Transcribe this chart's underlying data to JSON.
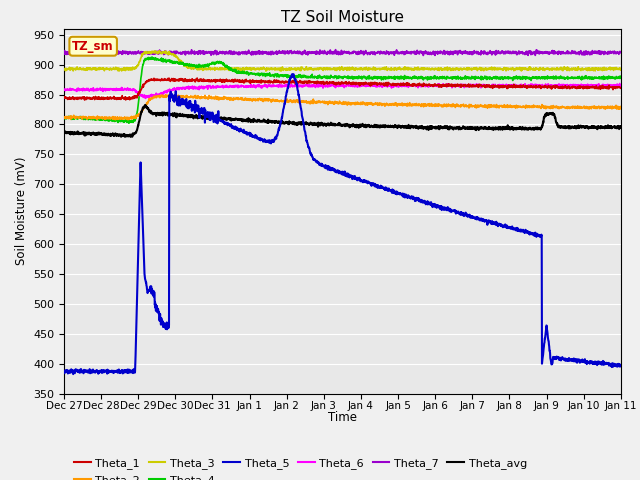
{
  "title": "TZ Soil Moisture",
  "ylabel": "Soil Moisture (mV)",
  "xlabel": "Time",
  "annotation_text": "TZ_sm",
  "annotation_color": "#cc0000",
  "annotation_bg": "#ffffcc",
  "annotation_edge": "#cc9900",
  "ylim": [
    350,
    960
  ],
  "yticks": [
    350,
    400,
    450,
    500,
    550,
    600,
    650,
    700,
    750,
    800,
    850,
    900,
    950
  ],
  "xlim": [
    0,
    360
  ],
  "xtick_labels": [
    "Dec 27",
    "Dec 28",
    "Dec 29",
    "Dec 30",
    "Dec 31",
    "Jan 1",
    "Jan 2",
    "Jan 3",
    "Jan 4",
    "Jan 5",
    "Jan 6",
    "Jan 7",
    "Jan 8",
    "Jan 9",
    "Jan 10",
    "Jan 11"
  ],
  "xtick_positions": [
    0,
    24,
    48,
    72,
    96,
    120,
    144,
    168,
    192,
    216,
    240,
    264,
    288,
    312,
    336,
    360
  ],
  "bg_color": "#e8e8e8",
  "fig_bg_color": "#f0f0f0",
  "grid_color": "white",
  "colors": {
    "Theta_1": "#cc0000",
    "Theta_2": "#ff9900",
    "Theta_3": "#cccc00",
    "Theta_4": "#00cc00",
    "Theta_5": "#0000cc",
    "Theta_6": "#ff00ff",
    "Theta_7": "#9900cc",
    "Theta_avg": "#000000"
  },
  "linewidth": 1.2,
  "figsize": [
    6.4,
    4.8
  ],
  "dpi": 100
}
